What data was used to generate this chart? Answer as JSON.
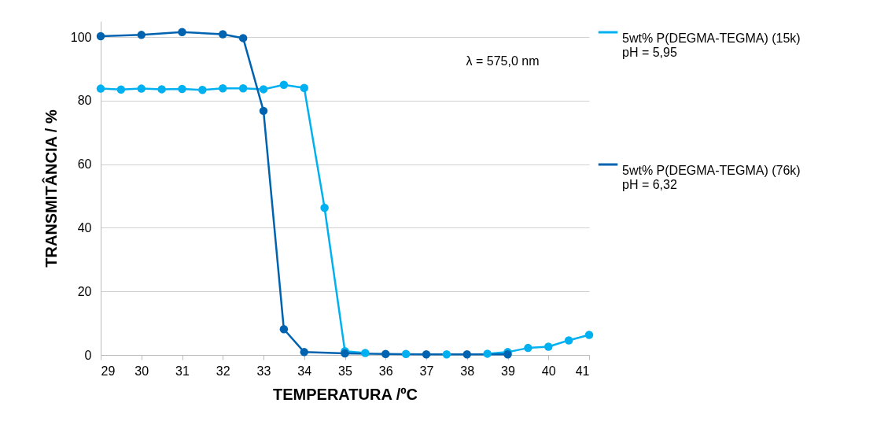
{
  "chart_data": {
    "type": "line",
    "xlabel": "TEMPERATURA /ºC",
    "ylabel": "TRANSMITÂNCIA / %",
    "annotations": [
      "λ = 575,0 nm"
    ],
    "xlim": [
      29,
      41
    ],
    "xticks": [
      29,
      30,
      31,
      32,
      33,
      34,
      35,
      36,
      37,
      38,
      39,
      40,
      41
    ],
    "ylim": [
      0,
      105
    ],
    "yticks": [
      0,
      20,
      40,
      60,
      80,
      100
    ],
    "grid": "y",
    "legend": "right",
    "marker": "circle",
    "line_style": "solid",
    "x": [
      29,
      29.5,
      30,
      30.5,
      31,
      31.5,
      32,
      32.5,
      33,
      33.5,
      34,
      34.5,
      35,
      35.5,
      36,
      36.5,
      37,
      37.5,
      38,
      38.5,
      39,
      39.5,
      40,
      40.5,
      41
    ],
    "series": [
      {
        "name": "5wt% P(DEGMA-TEGMA) (15k)\npH = 5,95",
        "color": "#00b0f0",
        "values": [
          83.8,
          83.5,
          83.8,
          83.6,
          83.7,
          83.4,
          83.9,
          83.9,
          83.6,
          85,
          84,
          46.3,
          1.2,
          0.6,
          null,
          0.3,
          null,
          0.2,
          null,
          0.4,
          0.9,
          2.2,
          2.6,
          4.6,
          6.3
        ]
      },
      {
        "name": "5wt% P(DEGMA-TEGMA) (76k)\npH = 6,32",
        "color": "#0063b0",
        "x": [
          29,
          30,
          31,
          32,
          32.5,
          33,
          33.5,
          34,
          35,
          36,
          37,
          38,
          39
        ],
        "values": [
          100.3,
          100.7,
          101.6,
          100.9,
          99.7,
          76.8,
          8.1,
          0.9,
          0.5,
          0.3,
          0.2,
          0.2,
          0.2
        ]
      }
    ]
  }
}
